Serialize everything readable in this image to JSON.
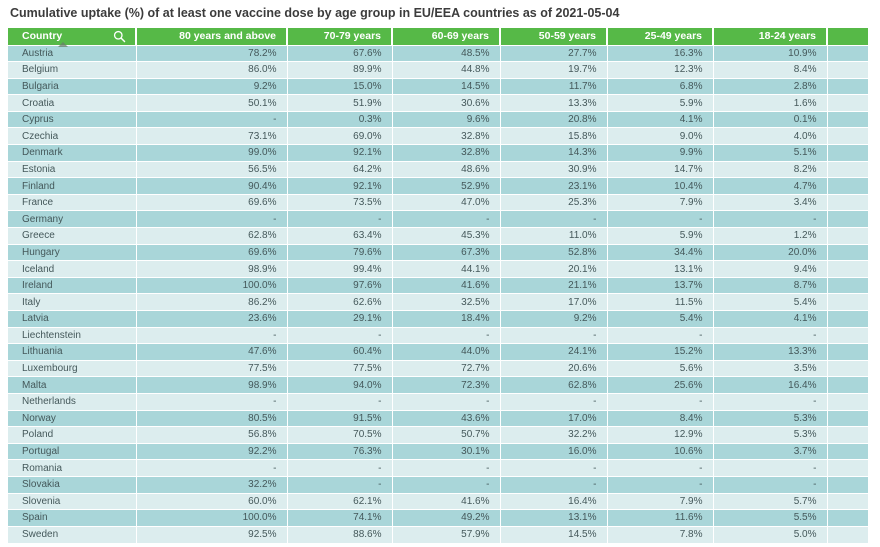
{
  "title": "Cumulative uptake (%) of at least one vaccine dose by age group in EU/EEA countries as of 2021-05-04",
  "icons": {
    "search": "magnifier-in-country-header",
    "sort": "sort-arrow-under-country-header"
  },
  "colors": {
    "header_bg": "#56b947",
    "header_text": "#ffffff",
    "row_odd_bg": "#a9d6d9",
    "row_even_bg": "#dcedee",
    "cell_text": "#44585a",
    "title_text": "#3c3c3c"
  },
  "chart_data": {
    "type": "table",
    "title": "Cumulative uptake (%) of at least one vaccine dose by age group in EU/EEA countries as of 2021-05-04",
    "columns": [
      "Country",
      "80 years and above",
      "70-79 years",
      "60-69 years",
      "50-59 years",
      "25-49 years",
      "18-24 years"
    ],
    "rows": [
      [
        "Austria",
        "78.2%",
        "67.6%",
        "48.5%",
        "27.7%",
        "16.3%",
        "10.9%"
      ],
      [
        "Belgium",
        "86.0%",
        "89.9%",
        "44.8%",
        "19.7%",
        "12.3%",
        "8.4%"
      ],
      [
        "Bulgaria",
        "9.2%",
        "15.0%",
        "14.5%",
        "11.7%",
        "6.8%",
        "2.8%"
      ],
      [
        "Croatia",
        "50.1%",
        "51.9%",
        "30.6%",
        "13.3%",
        "5.9%",
        "1.6%"
      ],
      [
        "Cyprus",
        "-",
        "0.3%",
        "9.6%",
        "20.8%",
        "4.1%",
        "0.1%"
      ],
      [
        "Czechia",
        "73.1%",
        "69.0%",
        "32.8%",
        "15.8%",
        "9.0%",
        "4.0%"
      ],
      [
        "Denmark",
        "99.0%",
        "92.1%",
        "32.8%",
        "14.3%",
        "9.9%",
        "5.1%"
      ],
      [
        "Estonia",
        "56.5%",
        "64.2%",
        "48.6%",
        "30.9%",
        "14.7%",
        "8.2%"
      ],
      [
        "Finland",
        "90.4%",
        "92.1%",
        "52.9%",
        "23.1%",
        "10.4%",
        "4.7%"
      ],
      [
        "France",
        "69.6%",
        "73.5%",
        "47.0%",
        "25.3%",
        "7.9%",
        "3.4%"
      ],
      [
        "Germany",
        "-",
        "-",
        "-",
        "-",
        "-",
        "-"
      ],
      [
        "Greece",
        "62.8%",
        "63.4%",
        "45.3%",
        "11.0%",
        "5.9%",
        "1.2%"
      ],
      [
        "Hungary",
        "69.6%",
        "79.6%",
        "67.3%",
        "52.8%",
        "34.4%",
        "20.0%"
      ],
      [
        "Iceland",
        "98.9%",
        "99.4%",
        "44.1%",
        "20.1%",
        "13.1%",
        "9.4%"
      ],
      [
        "Ireland",
        "100.0%",
        "97.6%",
        "41.6%",
        "21.1%",
        "13.7%",
        "8.7%"
      ],
      [
        "Italy",
        "86.2%",
        "62.6%",
        "32.5%",
        "17.0%",
        "11.5%",
        "5.4%"
      ],
      [
        "Latvia",
        "23.6%",
        "29.1%",
        "18.4%",
        "9.2%",
        "5.4%",
        "4.1%"
      ],
      [
        "Liechtenstein",
        "-",
        "-",
        "-",
        "-",
        "-",
        "-"
      ],
      [
        "Lithuania",
        "47.6%",
        "60.4%",
        "44.0%",
        "24.1%",
        "15.2%",
        "13.3%"
      ],
      [
        "Luxembourg",
        "77.5%",
        "77.5%",
        "72.7%",
        "20.6%",
        "5.6%",
        "3.5%"
      ],
      [
        "Malta",
        "98.9%",
        "94.0%",
        "72.3%",
        "62.8%",
        "25.6%",
        "16.4%"
      ],
      [
        "Netherlands",
        "-",
        "-",
        "-",
        "-",
        "-",
        "-"
      ],
      [
        "Norway",
        "80.5%",
        "91.5%",
        "43.6%",
        "17.0%",
        "8.4%",
        "5.3%"
      ],
      [
        "Poland",
        "56.8%",
        "70.5%",
        "50.7%",
        "32.2%",
        "12.9%",
        "5.3%"
      ],
      [
        "Portugal",
        "92.2%",
        "76.3%",
        "30.1%",
        "16.0%",
        "10.6%",
        "3.7%"
      ],
      [
        "Romania",
        "-",
        "-",
        "-",
        "-",
        "-",
        "-"
      ],
      [
        "Slovakia",
        "32.2%",
        "-",
        "-",
        "-",
        "-",
        "-"
      ],
      [
        "Slovenia",
        "60.0%",
        "62.1%",
        "41.6%",
        "16.4%",
        "7.9%",
        "5.7%"
      ],
      [
        "Spain",
        "100.0%",
        "74.1%",
        "49.2%",
        "13.1%",
        "11.6%",
        "5.5%"
      ],
      [
        "Sweden",
        "92.5%",
        "88.6%",
        "57.9%",
        "14.5%",
        "7.8%",
        "5.0%"
      ]
    ]
  }
}
